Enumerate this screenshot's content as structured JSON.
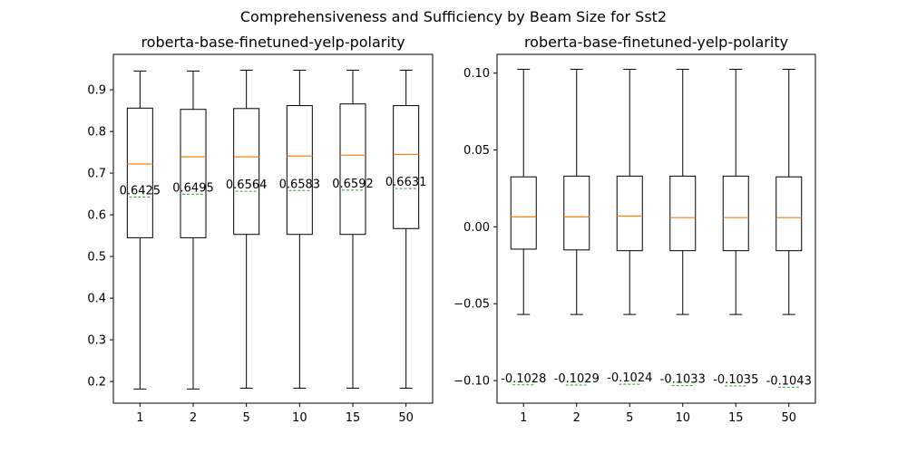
{
  "figure": {
    "suptitle": "Comprehensiveness and Sufficiency by Beam Size for Sst2"
  },
  "chart_data": [
    {
      "type": "box",
      "title": "roberta-base-finetuned-yelp-polarity",
      "xlabel": "",
      "ylabel": "",
      "categories": [
        "1",
        "2",
        "5",
        "10",
        "15",
        "50"
      ],
      "ylim": [
        0.148,
        0.985
      ],
      "yticks": [
        0.2,
        0.3,
        0.4,
        0.5,
        0.6,
        0.7,
        0.8,
        0.9
      ],
      "ytick_labels": [
        "0.2",
        "0.3",
        "0.4",
        "0.5",
        "0.6",
        "0.7",
        "0.8",
        "0.9"
      ],
      "whisker_low": [
        0.182,
        0.182,
        0.184,
        0.184,
        0.184,
        0.184
      ],
      "q1": [
        0.545,
        0.545,
        0.553,
        0.553,
        0.553,
        0.567
      ],
      "median": [
        0.722,
        0.739,
        0.739,
        0.741,
        0.743,
        0.745
      ],
      "q3": [
        0.856,
        0.853,
        0.855,
        0.862,
        0.866,
        0.862
      ],
      "whisker_high": [
        0.945,
        0.945,
        0.947,
        0.947,
        0.947,
        0.947
      ],
      "mean": [
        0.6425,
        0.6495,
        0.6564,
        0.6583,
        0.6592,
        0.6631
      ],
      "mean_labels": [
        "0.6425",
        "0.6495",
        "0.6564",
        "0.6583",
        "0.6592",
        "0.6631"
      ],
      "grid": false
    },
    {
      "type": "box",
      "title": "roberta-base-finetuned-yelp-polarity",
      "xlabel": "",
      "ylabel": "",
      "categories": [
        "1",
        "2",
        "5",
        "10",
        "15",
        "50"
      ],
      "ylim": [
        -0.1147,
        0.1122
      ],
      "yticks": [
        -0.1,
        -0.05,
        0.0,
        0.05,
        0.1
      ],
      "ytick_labels": [
        "−0.10",
        "−0.05",
        "0.00",
        "0.05",
        "0.10"
      ],
      "whisker_low": [
        -0.057,
        -0.057,
        -0.057,
        -0.057,
        -0.057,
        -0.057
      ],
      "q1": [
        -0.0145,
        -0.015,
        -0.0155,
        -0.0155,
        -0.0155,
        -0.0155
      ],
      "median": [
        0.0065,
        0.0065,
        0.007,
        0.006,
        0.006,
        0.006
      ],
      "q3": [
        0.0325,
        0.033,
        0.033,
        0.033,
        0.033,
        0.0325
      ],
      "whisker_high": [
        0.1025,
        0.1025,
        0.1025,
        0.1025,
        0.1025,
        0.1025
      ],
      "mean": [
        -0.1028,
        -0.1029,
        -0.1024,
        -0.1033,
        -0.1035,
        -0.1043
      ],
      "mean_labels": [
        "-0.1028",
        "-0.1029",
        "-0.1024",
        "-0.1033",
        "-0.1035",
        "-0.1043"
      ],
      "grid": false
    }
  ],
  "colors": {
    "box": "#000000",
    "median": "#ff7f0e",
    "mean": "#2ca02c",
    "background": "#ffffff"
  }
}
